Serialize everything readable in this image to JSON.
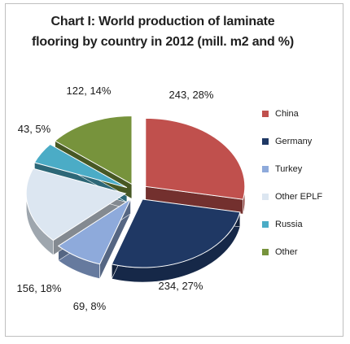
{
  "chart_data": {
    "type": "pie",
    "title": "Chart I: World production of laminate flooring by country in 2012 (mill. m2 and %)",
    "title_lines": [
      "Chart I: World production of laminate",
      "flooring by country in 2012 (mill. m2 and %)"
    ],
    "categories": [
      "China",
      "Germany",
      "Turkey",
      "Other EPLF",
      "Russia",
      "Other"
    ],
    "values": [
      243,
      234,
      69,
      156,
      43,
      122
    ],
    "percents": [
      28,
      27,
      8,
      18,
      5,
      14
    ],
    "data_labels": [
      "243, 28%",
      "234, 27%",
      "69, 8%",
      "156, 18%",
      "43, 5%",
      "122, 14%"
    ],
    "colors": [
      "#c0504d",
      "#1f3864",
      "#8eaadb",
      "#dce6f1",
      "#4bacc6",
      "#77933c"
    ],
    "style": "3d-exploded",
    "legend_position": "right"
  }
}
